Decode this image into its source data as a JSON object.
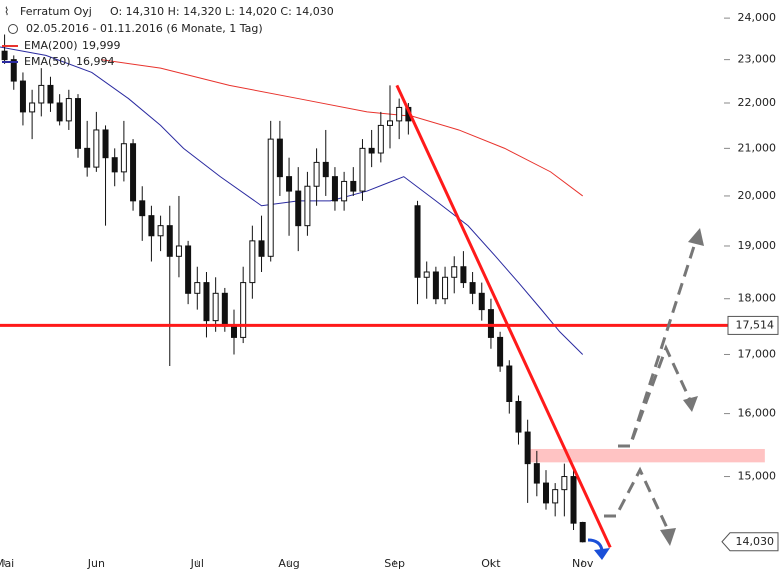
{
  "chart_data": {
    "type": "candlestick",
    "title": "Ferratum Oyj",
    "subtitle": "O: 14,310  H: 14,320  L: 14,020  C: 14,030",
    "range_label": "02.05.2016 - 01.11.2016 (6 Monate, 1 Tag)",
    "log_scale": true,
    "xlim": [
      0,
      170
    ],
    "xticks": [
      {
        "value": 1,
        "label": "Mai"
      },
      {
        "value": 21,
        "label": "Jun"
      },
      {
        "value": 43,
        "label": "Jul"
      },
      {
        "value": 63,
        "label": "Aug"
      },
      {
        "value": 86,
        "label": "Sep"
      },
      {
        "value": 107,
        "label": "Okt"
      },
      {
        "value": 127,
        "label": "Nov"
      }
    ],
    "ylim": [
      13.77,
      24.45
    ],
    "yticks": [
      {
        "value": 24,
        "label": "24,000"
      },
      {
        "value": 23,
        "label": "23,000"
      },
      {
        "value": 22,
        "label": "22,000"
      },
      {
        "value": 21,
        "label": "21,000"
      },
      {
        "value": 20,
        "label": "20,000"
      },
      {
        "value": 19,
        "label": "19,000"
      },
      {
        "value": 18,
        "label": "18,000"
      },
      {
        "value": 17,
        "label": "17,000"
      },
      {
        "value": 16,
        "label": "16,000"
      },
      {
        "value": 15,
        "label": "15,000"
      }
    ],
    "candles": {
      "x": [
        1,
        3,
        5,
        7,
        9,
        11,
        13,
        15,
        17,
        19,
        21,
        23,
        25,
        27,
        29,
        31,
        33,
        35,
        37,
        39,
        41,
        43,
        45,
        47,
        49,
        51,
        53,
        55,
        57,
        59,
        61,
        63,
        65,
        67,
        69,
        71,
        73,
        75,
        77,
        79,
        81,
        83,
        85,
        87,
        89,
        91,
        93,
        95,
        97,
        99,
        101,
        103,
        105,
        107,
        109,
        111,
        113,
        115,
        117,
        119,
        121,
        123,
        125,
        127
      ],
      "open": [
        23.2,
        23.0,
        22.5,
        21.8,
        22.0,
        22.4,
        22.0,
        21.6,
        22.1,
        21.0,
        20.6,
        21.4,
        20.8,
        20.5,
        21.1,
        19.9,
        19.6,
        19.2,
        19.4,
        18.8,
        19.0,
        18.1,
        18.3,
        17.6,
        18.1,
        17.5,
        17.3,
        18.3,
        19.1,
        18.8,
        21.2,
        20.4,
        20.1,
        19.4,
        20.2,
        20.7,
        20.4,
        19.9,
        20.3,
        20.1,
        21.0,
        20.9,
        21.5,
        21.6,
        21.9,
        19.8,
        18.4,
        18.5,
        18.0,
        18.4,
        18.6,
        18.3,
        18.1,
        17.8,
        17.3,
        16.8,
        16.2,
        15.7,
        15.2,
        14.9,
        14.6,
        14.8,
        15.0,
        14.31
      ],
      "high": [
        23.6,
        23.1,
        22.7,
        22.3,
        22.8,
        22.6,
        22.2,
        22.3,
        22.2,
        21.6,
        21.8,
        21.5,
        21.0,
        21.6,
        21.2,
        20.2,
        19.8,
        19.6,
        19.8,
        20.0,
        19.1,
        18.6,
        18.5,
        18.4,
        18.2,
        17.8,
        18.6,
        19.4,
        19.6,
        21.6,
        21.6,
        20.8,
        20.6,
        20.5,
        21.0,
        21.4,
        20.6,
        20.5,
        20.6,
        21.2,
        21.4,
        21.8,
        22.4,
        22.1,
        22.0,
        19.9,
        18.7,
        18.6,
        18.6,
        18.8,
        18.9,
        18.5,
        18.3,
        18.0,
        17.4,
        16.9,
        16.3,
        15.9,
        15.4,
        15.1,
        14.9,
        15.2,
        15.1,
        14.32
      ],
      "low": [
        22.9,
        22.3,
        21.5,
        21.2,
        21.7,
        21.8,
        21.5,
        21.4,
        20.8,
        20.4,
        20.5,
        19.4,
        20.2,
        20.3,
        19.7,
        19.1,
        18.7,
        18.9,
        16.8,
        18.4,
        17.9,
        17.8,
        17.3,
        17.4,
        17.4,
        17.0,
        17.2,
        18.0,
        18.5,
        18.7,
        20.0,
        19.2,
        18.9,
        19.2,
        19.8,
        20.0,
        19.7,
        19.7,
        20.0,
        19.9,
        20.6,
        20.7,
        21.0,
        21.2,
        21.3,
        17.9,
        18.0,
        17.9,
        17.9,
        18.1,
        18.2,
        17.9,
        17.6,
        17.1,
        16.7,
        16.0,
        15.5,
        14.6,
        14.7,
        14.5,
        14.4,
        14.4,
        14.2,
        14.02
      ],
      "close": [
        23.0,
        22.5,
        21.8,
        22.0,
        22.4,
        22.0,
        21.6,
        22.1,
        21.0,
        20.6,
        21.4,
        20.8,
        20.5,
        21.1,
        19.9,
        19.6,
        19.2,
        19.4,
        18.8,
        19.0,
        18.1,
        18.3,
        17.6,
        18.1,
        17.5,
        17.3,
        18.3,
        19.1,
        18.8,
        21.2,
        20.4,
        20.1,
        19.4,
        20.2,
        20.7,
        20.4,
        19.9,
        20.3,
        20.1,
        21.0,
        20.9,
        21.5,
        21.6,
        21.9,
        21.6,
        18.4,
        18.5,
        18.0,
        18.4,
        18.6,
        18.3,
        18.1,
        17.8,
        17.3,
        16.8,
        16.2,
        15.7,
        15.2,
        14.9,
        14.6,
        14.8,
        15.0,
        14.3,
        14.03
      ]
    },
    "series": [
      {
        "name": "EMA(200)",
        "value_label": "19,999",
        "color": "#e8332d",
        "x": [
          22,
          35,
          50,
          65,
          80,
          90,
          100,
          110,
          120,
          127
        ],
        "values": [
          23.0,
          22.8,
          22.4,
          22.1,
          21.8,
          21.7,
          21.4,
          21.0,
          20.5,
          20.0
        ]
      },
      {
        "name": "EMA(50)",
        "value_label": "16,994",
        "color": "#2a2aa0",
        "x": [
          0,
          10,
          20,
          28,
          35,
          40,
          48,
          57,
          65,
          72,
          80,
          88,
          95,
          102,
          108,
          113,
          118,
          122,
          127
        ],
        "values": [
          23.3,
          23.1,
          22.7,
          22.1,
          21.5,
          21.0,
          20.4,
          19.8,
          19.9,
          19.9,
          20.1,
          20.4,
          19.9,
          19.4,
          18.8,
          18.3,
          17.8,
          17.4,
          17.0
        ]
      }
    ],
    "hline": {
      "value": 17.514,
      "label": "17,514",
      "color": "#ff1a1a"
    },
    "trendline": {
      "x": [
        86.5,
        133
      ],
      "values": [
        22.4,
        13.95
      ],
      "color": "#ff1a1a"
    },
    "zone": {
      "x": [
        114.4,
        166.7
      ],
      "values": [
        15.22,
        15.43
      ],
      "color": "#ffb8b8"
    },
    "last_price": {
      "value": 14.03,
      "label": "14,030"
    }
  }
}
